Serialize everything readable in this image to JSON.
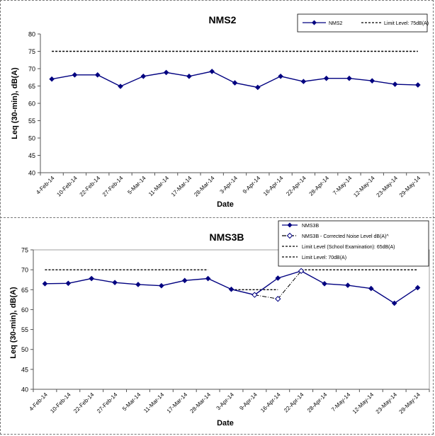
{
  "chart_data": [
    {
      "type": "line",
      "title": "NMS2",
      "xlabel": "Date",
      "ylabel": "Leq (30-min), dB(A)",
      "ylim": [
        40,
        80
      ],
      "yticks": [
        40,
        45,
        50,
        55,
        60,
        65,
        70,
        75,
        80
      ],
      "categories": [
        "4-Feb-14",
        "10-Feb-14",
        "22-Feb-14",
        "27-Feb-14",
        "5-Mar-14",
        "11-Mar-14",
        "17-Mar-14",
        "28-Mar-14",
        "3-Apr-14",
        "9-Apr-14",
        "16-Apr-14",
        "22-Apr-14",
        "28-Apr-14",
        "7-May-14",
        "12-May-14",
        "23-May-14",
        "29-May-14"
      ],
      "series": [
        {
          "name": "NMS2",
          "color": "#000080",
          "marker": "diamond-filled",
          "values": [
            67.0,
            68.2,
            68.2,
            64.9,
            67.8,
            68.9,
            67.8,
            69.2,
            65.9,
            64.6,
            67.8,
            66.3,
            67.2,
            67.2,
            66.5,
            65.5,
            65.3
          ]
        }
      ],
      "limit_lines": [
        {
          "name": "Limit Level: 75dB(A)",
          "value": 75,
          "color": "#000000",
          "style": "dashed"
        }
      ],
      "legend": "top-right",
      "grid": false
    },
    {
      "type": "line",
      "title": "NMS3B",
      "xlabel": "Date",
      "ylabel": "Leq (30-min), dB(A)",
      "ylim": [
        40,
        75
      ],
      "yticks": [
        40,
        45,
        50,
        55,
        60,
        65,
        70,
        75
      ],
      "categories": [
        "4-Feb-14",
        "10-Feb-14",
        "22-Feb-14",
        "27-Feb-14",
        "5-Mar-14",
        "11-Mar-14",
        "17-Mar-14",
        "28-Mar-14",
        "3-Apr-14",
        "9-Apr-14",
        "16-Apr-14",
        "22-Apr-14",
        "28-Apr-14",
        "7-May-14",
        "12-May-14",
        "23-May-14",
        "29-May-14"
      ],
      "series": [
        {
          "name": "NMS3B",
          "color": "#000080",
          "marker": "diamond-filled",
          "values": [
            66.5,
            66.6,
            67.8,
            66.8,
            66.3,
            66.0,
            67.3,
            67.8,
            65.1,
            63.7,
            67.9,
            69.7,
            66.5,
            66.1,
            65.3,
            61.6,
            65.5
          ]
        },
        {
          "name": "NMS3B - Corrected Noise Level dB(A)^",
          "color": "#000080",
          "marker": "diamond-open",
          "values": [
            null,
            null,
            null,
            null,
            null,
            null,
            null,
            null,
            null,
            63.7,
            62.7,
            69.7,
            null,
            null,
            null,
            null,
            null
          ]
        }
      ],
      "limit_lines": [
        {
          "name": "Limit Level (School Examination): 65dB(A)",
          "value": 65,
          "from_index": 8,
          "to_index": 10,
          "color": "#000000",
          "style": "dashed"
        },
        {
          "name": "Limit Level: 70dB(A)",
          "value": 70,
          "segments": [
            [
              0,
              7
            ],
            [
              11,
              16
            ]
          ],
          "color": "#000000",
          "style": "dashed"
        }
      ],
      "legend": "top-right",
      "grid": false
    }
  ]
}
